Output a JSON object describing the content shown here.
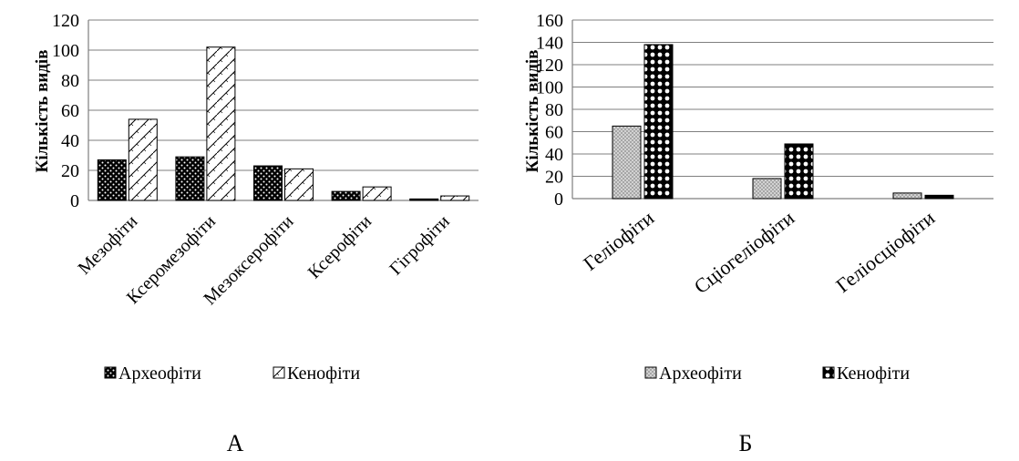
{
  "panels": {
    "a": {
      "label": "А"
    },
    "b": {
      "label": "Б"
    }
  },
  "chart_data": [
    {
      "type": "bar",
      "ylabel": "Кількість видів",
      "categories": [
        "Мезофіти",
        "Ксеромезофіти",
        "Мезоксерофіти",
        "Ксерофіти",
        "Гігрофіти"
      ],
      "series": [
        {
          "name": "Археофіти",
          "values": [
            27,
            29,
            23,
            6,
            1
          ]
        },
        {
          "name": "Кенофіти",
          "values": [
            54,
            102,
            21,
            9,
            3
          ]
        }
      ],
      "ylim": [
        0,
        120
      ],
      "yticks": [
        0,
        20,
        40,
        60,
        80,
        100,
        120
      ],
      "grid": true,
      "legend": "bottom"
    },
    {
      "type": "bar",
      "ylabel": "Кількість видів",
      "categories": [
        "Геліофіти",
        "Сціогеліофіти",
        "Геліосціофіти"
      ],
      "series": [
        {
          "name": "Археофіти",
          "values": [
            65,
            18,
            5
          ]
        },
        {
          "name": "Кенофіти",
          "values": [
            138,
            49,
            3
          ]
        }
      ],
      "ylim": [
        0,
        160
      ],
      "yticks": [
        0,
        20,
        40,
        60,
        80,
        100,
        120,
        140,
        160
      ],
      "grid": true,
      "legend": "bottom"
    }
  ]
}
